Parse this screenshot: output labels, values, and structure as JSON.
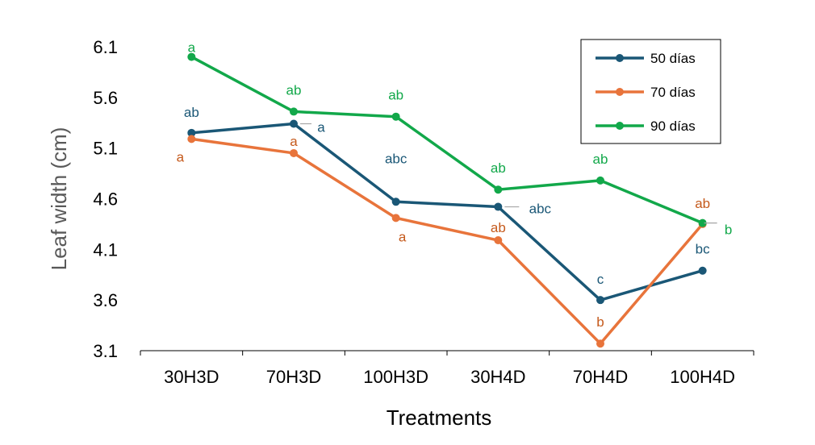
{
  "chart_data": {
    "type": "line",
    "categories": [
      "30H3D",
      "70H3D",
      "100H3D",
      "30H4D",
      "70H4D",
      "100H4D"
    ],
    "xlabel": "Treatments",
    "ylabel": "Leaf width (cm)",
    "ylim": [
      3.1,
      6.1
    ],
    "yticks": [
      "3.1",
      "3.6",
      "4.1",
      "4.6",
      "5.1",
      "5.6",
      "6.1"
    ],
    "grid": false,
    "legend_position": "top-right",
    "series": [
      {
        "name": "50 días",
        "color": "#1a5776",
        "values": [
          5.25,
          5.34,
          4.57,
          4.52,
          3.6,
          3.89
        ],
        "labels": [
          "ab",
          "a",
          "abc",
          "abc",
          "c",
          "bc"
        ]
      },
      {
        "name": "70 días",
        "color": "#e8743b",
        "labels_color": "#c55a1c",
        "values": [
          5.19,
          5.05,
          4.41,
          4.19,
          3.17,
          4.35
        ],
        "labels": [
          "a",
          "a",
          "a",
          "ab",
          "b",
          "ab"
        ]
      },
      {
        "name": "90 días",
        "color": "#12a84a",
        "values": [
          6.0,
          5.46,
          5.41,
          4.69,
          4.78,
          4.36
        ],
        "labels": [
          "a",
          "ab",
          "ab",
          "ab",
          "ab",
          "b"
        ]
      }
    ]
  }
}
